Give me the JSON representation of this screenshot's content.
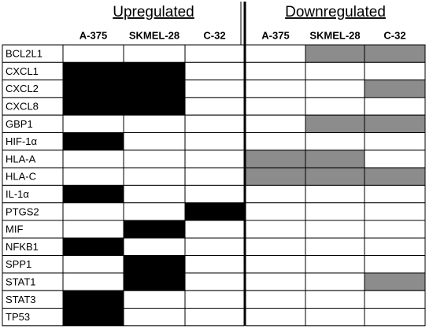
{
  "groups": [
    {
      "title": "Upregulated",
      "color": "#000000",
      "columns": [
        "A-375",
        "SKMEL-28",
        "C-32"
      ]
    },
    {
      "title": "Downregulated",
      "color": "#8c8c8c",
      "columns": [
        "A-375",
        "SKMEL-28",
        "C-32"
      ]
    }
  ],
  "rows": [
    {
      "gene": "BCL2L1",
      "values": [
        [
          0,
          0,
          0
        ],
        [
          0,
          1,
          1
        ]
      ]
    },
    {
      "gene": "CXCL1",
      "values": [
        [
          1,
          1,
          0
        ],
        [
          0,
          0,
          0
        ]
      ]
    },
    {
      "gene": "CXCL2",
      "values": [
        [
          1,
          1,
          0
        ],
        [
          0,
          0,
          1
        ]
      ]
    },
    {
      "gene": "CXCL8",
      "values": [
        [
          1,
          1,
          0
        ],
        [
          0,
          0,
          0
        ]
      ]
    },
    {
      "gene": "GBP1",
      "values": [
        [
          0,
          0,
          0
        ],
        [
          0,
          1,
          1
        ]
      ]
    },
    {
      "gene": "HIF-1α",
      "values": [
        [
          1,
          0,
          0
        ],
        [
          0,
          0,
          0
        ]
      ]
    },
    {
      "gene": "HLA-A",
      "values": [
        [
          0,
          0,
          0
        ],
        [
          1,
          1,
          0
        ]
      ]
    },
    {
      "gene": "HLA-C",
      "values": [
        [
          0,
          0,
          0
        ],
        [
          1,
          1,
          1
        ]
      ]
    },
    {
      "gene": "IL-1α",
      "values": [
        [
          1,
          0,
          0
        ],
        [
          0,
          0,
          0
        ]
      ]
    },
    {
      "gene": "PTGS2",
      "values": [
        [
          0,
          0,
          1
        ],
        [
          0,
          0,
          0
        ]
      ]
    },
    {
      "gene": "MIF",
      "values": [
        [
          0,
          1,
          0
        ],
        [
          0,
          0,
          0
        ]
      ]
    },
    {
      "gene": "NFKB1",
      "values": [
        [
          1,
          0,
          0
        ],
        [
          0,
          0,
          0
        ]
      ]
    },
    {
      "gene": "SPP1",
      "values": [
        [
          0,
          1,
          0
        ],
        [
          0,
          0,
          0
        ]
      ]
    },
    {
      "gene": "STAT1",
      "values": [
        [
          0,
          1,
          0
        ],
        [
          0,
          0,
          1
        ]
      ]
    },
    {
      "gene": "STAT3",
      "values": [
        [
          1,
          0,
          0
        ],
        [
          0,
          0,
          0
        ]
      ]
    },
    {
      "gene": "TP53",
      "values": [
        [
          1,
          0,
          0
        ],
        [
          0,
          0,
          0
        ]
      ]
    }
  ]
}
